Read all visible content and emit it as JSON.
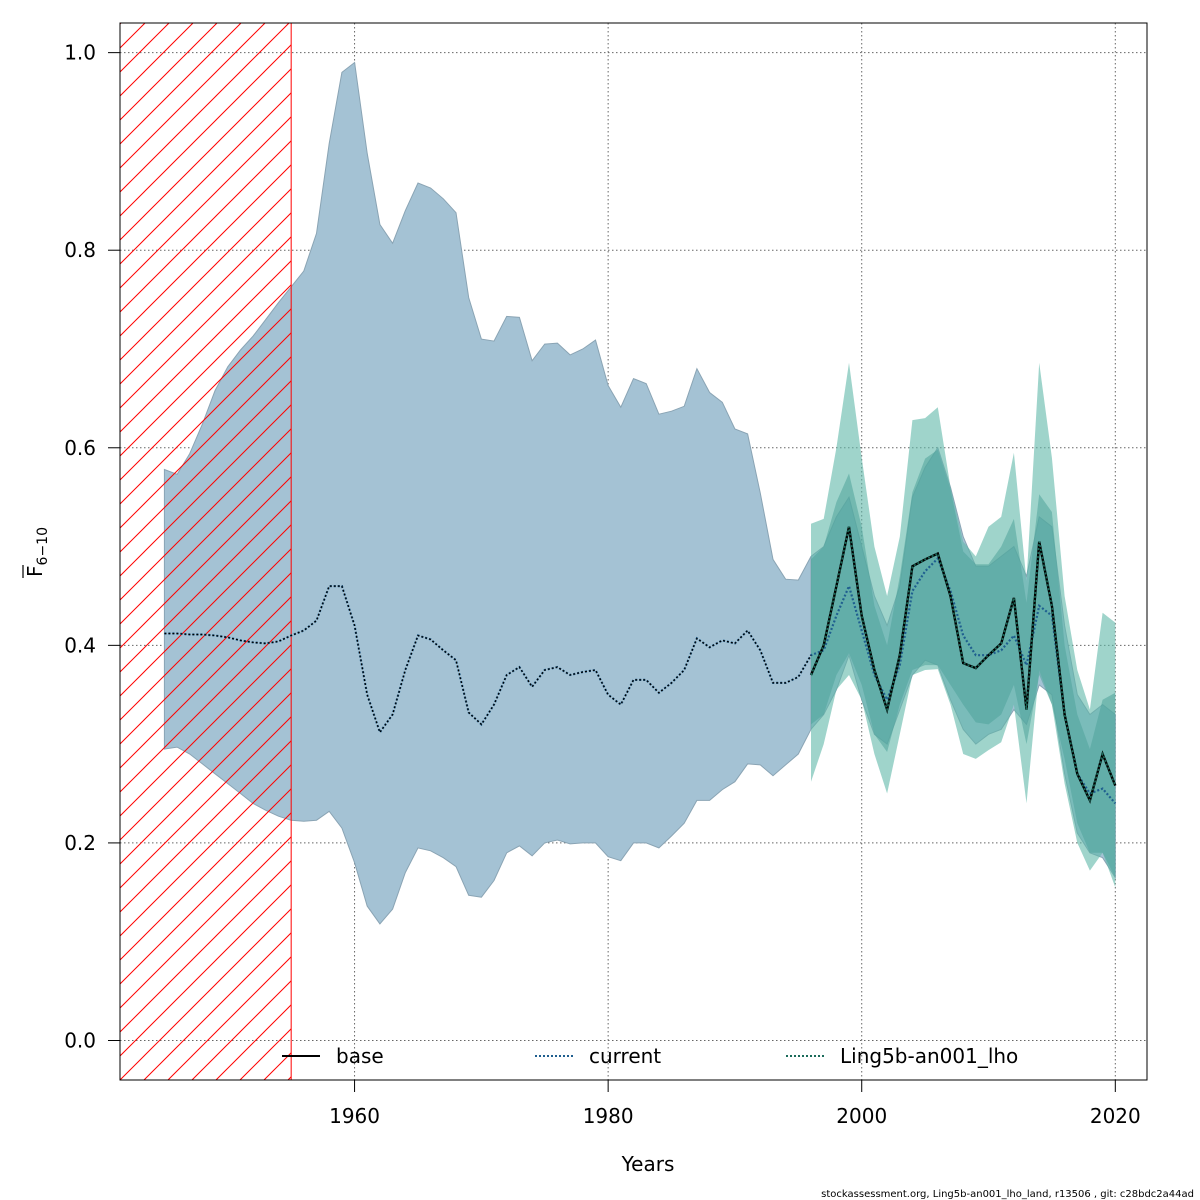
{
  "chart_data": {
    "type": "area",
    "title": "",
    "xlabel": "Years",
    "ylabel_main": "F",
    "ylabel_sub": "6−10",
    "xlim": [
      1941.5,
      2022.5
    ],
    "ylim": [
      -0.04,
      1.03
    ],
    "x_ticks": [
      1960,
      1980,
      2000,
      2020
    ],
    "x_tick_labels": [
      "1960",
      "1980",
      "2000",
      "2020"
    ],
    "y_ticks": [
      0.0,
      0.2,
      0.4,
      0.6,
      0.8,
      1.0
    ],
    "y_tick_labels": [
      "0.0",
      "0.2",
      "0.4",
      "0.6",
      "0.8",
      "1.0"
    ],
    "grid": true,
    "legend_position": "bottom",
    "hatched_region": {
      "x_start": 1941.5,
      "x_end": 1955,
      "color": "#ff0000"
    },
    "series": [
      {
        "name": "base",
        "line_style": "solid",
        "line_color": "#000000",
        "band_color": "#a4c2d4",
        "x": [
          1945,
          1946,
          1947,
          1948,
          1949,
          1950,
          1951,
          1952,
          1953,
          1954,
          1955,
          1956,
          1957,
          1958,
          1959,
          1960,
          1961,
          1962,
          1963,
          1964,
          1965,
          1966,
          1967,
          1968,
          1969,
          1970,
          1971,
          1972,
          1973,
          1974,
          1975,
          1976,
          1977,
          1978,
          1979,
          1980,
          1981,
          1982,
          1983,
          1984,
          1985,
          1986,
          1987,
          1988,
          1989,
          1990,
          1991,
          1992,
          1993,
          1994,
          1995,
          1996
        ],
        "values": [
          0.412,
          0.412,
          0.411,
          0.411,
          0.41,
          0.408,
          0.405,
          0.403,
          0.402,
          0.404,
          0.41,
          0.415,
          0.425,
          0.46,
          0.46,
          0.42,
          0.35,
          0.312,
          0.33,
          0.375,
          0.41,
          0.406,
          0.395,
          0.385,
          0.332,
          0.32,
          0.34,
          0.37,
          0.378,
          0.358,
          0.375,
          0.378,
          0.37,
          0.373,
          0.375,
          0.35,
          0.34,
          0.365,
          0.365,
          0.352,
          0.362,
          0.375,
          0.407,
          0.398,
          0.405,
          0.402,
          0.415,
          0.395,
          0.362,
          0.362,
          0.368,
          0.39
        ],
        "lower": [
          0.295,
          0.297,
          0.29,
          0.28,
          0.27,
          0.26,
          0.25,
          0.24,
          0.233,
          0.227,
          0.223,
          0.222,
          0.223,
          0.232,
          0.215,
          0.18,
          0.136,
          0.118,
          0.133,
          0.17,
          0.195,
          0.192,
          0.185,
          0.176,
          0.147,
          0.145,
          0.162,
          0.19,
          0.197,
          0.187,
          0.2,
          0.203,
          0.199,
          0.2,
          0.2,
          0.186,
          0.182,
          0.2,
          0.2,
          0.195,
          0.207,
          0.22,
          0.243,
          0.243,
          0.254,
          0.262,
          0.28,
          0.279,
          0.268,
          0.279,
          0.29,
          0.315
        ],
        "upper": [
          0.578,
          0.573,
          0.594,
          0.624,
          0.658,
          0.682,
          0.699,
          0.713,
          0.73,
          0.747,
          0.763,
          0.779,
          0.817,
          0.908,
          0.98,
          0.99,
          0.898,
          0.826,
          0.807,
          0.84,
          0.868,
          0.863,
          0.852,
          0.838,
          0.752,
          0.71,
          0.708,
          0.733,
          0.732,
          0.688,
          0.705,
          0.706,
          0.694,
          0.7,
          0.709,
          0.663,
          0.641,
          0.67,
          0.665,
          0.634,
          0.637,
          0.642,
          0.68,
          0.656,
          0.646,
          0.619,
          0.614,
          0.554,
          0.487,
          0.467,
          0.466,
          0.49
        ]
      },
      {
        "name": "current",
        "line_style": "dotted",
        "line_color": "#1f5f8f",
        "band_color": "#a4c2d4",
        "x": [
          1945,
          1946,
          1947,
          1948,
          1949,
          1950,
          1951,
          1952,
          1953,
          1954,
          1955,
          1956,
          1957,
          1958,
          1959,
          1960,
          1961,
          1962,
          1963,
          1964,
          1965,
          1966,
          1967,
          1968,
          1969,
          1970,
          1971,
          1972,
          1973,
          1974,
          1975,
          1976,
          1977,
          1978,
          1979,
          1980,
          1981,
          1982,
          1983,
          1984,
          1985,
          1986,
          1987,
          1988,
          1989,
          1990,
          1991,
          1992,
          1993,
          1994,
          1995,
          1996,
          1997,
          1998,
          1999,
          2000,
          2001,
          2002,
          2003,
          2004,
          2005,
          2006,
          2007,
          2008,
          2009,
          2010,
          2011,
          2012,
          2013,
          2014,
          2015,
          2016,
          2017,
          2018,
          2019,
          2020
        ],
        "values": [
          0.412,
          0.412,
          0.411,
          0.411,
          0.41,
          0.408,
          0.405,
          0.403,
          0.402,
          0.404,
          0.41,
          0.415,
          0.425,
          0.46,
          0.46,
          0.42,
          0.35,
          0.312,
          0.33,
          0.375,
          0.41,
          0.406,
          0.395,
          0.385,
          0.332,
          0.32,
          0.34,
          0.37,
          0.378,
          0.358,
          0.375,
          0.378,
          0.37,
          0.373,
          0.375,
          0.35,
          0.34,
          0.365,
          0.365,
          0.352,
          0.362,
          0.375,
          0.407,
          0.398,
          0.405,
          0.402,
          0.415,
          0.395,
          0.362,
          0.362,
          0.368,
          0.39,
          0.395,
          0.43,
          0.46,
          0.415,
          0.37,
          0.345,
          0.38,
          0.455,
          0.475,
          0.488,
          0.455,
          0.41,
          0.39,
          0.39,
          0.395,
          0.41,
          0.38,
          0.44,
          0.43,
          0.33,
          0.27,
          0.25,
          0.255,
          0.24
        ],
        "lower": [
          0.295,
          0.297,
          0.29,
          0.28,
          0.27,
          0.26,
          0.25,
          0.24,
          0.233,
          0.227,
          0.223,
          0.222,
          0.223,
          0.232,
          0.215,
          0.18,
          0.136,
          0.118,
          0.133,
          0.17,
          0.195,
          0.192,
          0.185,
          0.176,
          0.147,
          0.145,
          0.162,
          0.19,
          0.197,
          0.187,
          0.2,
          0.203,
          0.199,
          0.2,
          0.2,
          0.186,
          0.182,
          0.2,
          0.2,
          0.195,
          0.207,
          0.22,
          0.243,
          0.243,
          0.254,
          0.262,
          0.28,
          0.279,
          0.268,
          0.279,
          0.29,
          0.315,
          0.33,
          0.355,
          0.39,
          0.345,
          0.31,
          0.3,
          0.335,
          0.37,
          0.385,
          0.38,
          0.345,
          0.315,
          0.3,
          0.31,
          0.315,
          0.335,
          0.32,
          0.36,
          0.35,
          0.27,
          0.21,
          0.19,
          0.185,
          0.165
        ],
        "upper": [
          0.578,
          0.573,
          0.594,
          0.624,
          0.658,
          0.682,
          0.699,
          0.713,
          0.73,
          0.747,
          0.763,
          0.779,
          0.817,
          0.908,
          0.98,
          0.99,
          0.898,
          0.826,
          0.807,
          0.84,
          0.868,
          0.863,
          0.852,
          0.838,
          0.752,
          0.71,
          0.708,
          0.733,
          0.732,
          0.688,
          0.705,
          0.706,
          0.694,
          0.7,
          0.709,
          0.663,
          0.641,
          0.67,
          0.665,
          0.634,
          0.637,
          0.642,
          0.68,
          0.656,
          0.646,
          0.619,
          0.614,
          0.554,
          0.487,
          0.467,
          0.466,
          0.49,
          0.5,
          0.53,
          0.55,
          0.5,
          0.45,
          0.42,
          0.46,
          0.55,
          0.58,
          0.6,
          0.56,
          0.51,
          0.48,
          0.48,
          0.49,
          0.5,
          0.47,
          0.53,
          0.52,
          0.42,
          0.35,
          0.33,
          0.34,
          0.33
        ]
      },
      {
        "name": "Ling5b-an001_lho",
        "line_style": "dotted",
        "line_color": "#1a6b5a",
        "band_color": "#5fb8a8",
        "x": [
          1996,
          1997,
          1998,
          1999,
          2000,
          2001,
          2002,
          2003,
          2004,
          2005,
          2006,
          2007,
          2008,
          2009,
          2010,
          2011,
          2012,
          2013,
          2014,
          2015,
          2016,
          2017,
          2018,
          2019,
          2020
        ],
        "values": [
          0.37,
          0.4,
          0.46,
          0.52,
          0.43,
          0.375,
          0.335,
          0.39,
          0.48,
          0.487,
          0.493,
          0.45,
          0.382,
          0.377,
          0.39,
          0.402,
          0.448,
          0.335,
          0.505,
          0.44,
          0.33,
          0.27,
          0.243,
          0.29,
          0.258
        ],
        "lower": [
          0.262,
          0.3,
          0.355,
          0.37,
          0.345,
          0.29,
          0.25,
          0.31,
          0.37,
          0.375,
          0.376,
          0.34,
          0.29,
          0.285,
          0.294,
          0.302,
          0.34,
          0.24,
          0.375,
          0.34,
          0.26,
          0.2,
          0.172,
          0.19,
          0.155
        ],
        "upper": [
          0.523,
          0.528,
          0.6,
          0.686,
          0.59,
          0.5,
          0.45,
          0.51,
          0.628,
          0.63,
          0.641,
          0.56,
          0.505,
          0.49,
          0.52,
          0.53,
          0.595,
          0.465,
          0.686,
          0.59,
          0.45,
          0.375,
          0.335,
          0.433,
          0.423
        ],
        "inner_lower": [
          0.32,
          0.33,
          0.37,
          0.392,
          0.36,
          0.31,
          0.292,
          0.34,
          0.375,
          0.38,
          0.38,
          0.36,
          0.34,
          0.322,
          0.32,
          0.33,
          0.36,
          0.3,
          0.37,
          0.34,
          0.285,
          0.22,
          0.19,
          0.19,
          0.165
        ],
        "inner_upper": [
          0.487,
          0.5,
          0.545,
          0.574,
          0.52,
          0.44,
          0.4,
          0.47,
          0.555,
          0.589,
          0.598,
          0.558,
          0.495,
          0.482,
          0.482,
          0.5,
          0.528,
          0.443,
          0.553,
          0.535,
          0.4,
          0.33,
          0.295,
          0.345,
          0.352
        ]
      }
    ]
  },
  "footer": "stockassessment.org, Ling5b-an001_lho_land, r13506 , git: c28bdc2a44ad"
}
